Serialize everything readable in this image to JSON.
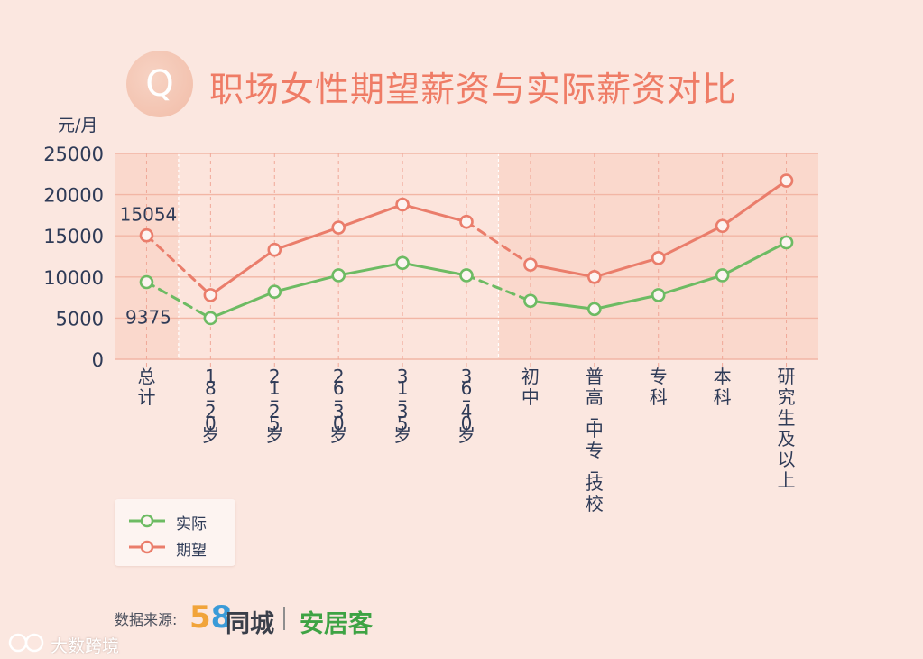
{
  "title": "职场女性期望薪资与实际薪资对比",
  "badge_letter": "Q",
  "colors": {
    "background": "#fbe7e0",
    "plot_band": "#fad8cc",
    "plot_band_light": "#fce4dc",
    "grid": "#f2b6a5",
    "actual": "#6dbb63",
    "expected": "#ea7d6b",
    "text": "#2f3b57"
  },
  "chart_data": {
    "type": "line",
    "ylabel": "元/月",
    "ylim": [
      0,
      25000
    ],
    "yticks": [
      "0",
      "5000",
      "10000",
      "15000",
      "20000",
      "25000"
    ],
    "categories": [
      "总计",
      "18–20 岁",
      "21–25岁",
      "26–30岁",
      "31–35岁",
      "36–40岁",
      "初中",
      "普高 – 中专 – 技校",
      "专科",
      "本科",
      "研究生及以上"
    ],
    "series": [
      {
        "name": "实际",
        "values": [
          9375,
          5000,
          8200,
          10200,
          11700,
          10200,
          7100,
          6100,
          7800,
          10200,
          14200
        ]
      },
      {
        "name": "期望",
        "values": [
          15054,
          7800,
          13300,
          16000,
          18800,
          16700,
          11500,
          10000,
          12300,
          16200,
          21700
        ]
      }
    ],
    "dashed_segments": [
      [
        0,
        1
      ],
      [
        5,
        6
      ]
    ],
    "data_labels": [
      {
        "series": "期望",
        "index": 0,
        "text": "15054"
      },
      {
        "series": "实际",
        "index": 0,
        "text": "9375"
      }
    ],
    "grid": true,
    "legend_position": "bottom-left"
  },
  "source": {
    "label": "数据来源:",
    "brand_58_a": "5",
    "brand_58_b": "8",
    "brand_tongcheng": "同城",
    "brand_anjuke": "安居客"
  },
  "watermark": "大数跨境"
}
